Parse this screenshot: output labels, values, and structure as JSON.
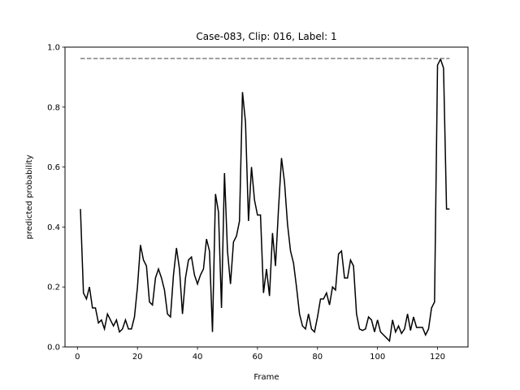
{
  "chart_data": {
    "type": "line",
    "title": "Case-083, Clip: 016, Label: 1",
    "xlabel": "Frame",
    "ylabel": "predicted probability",
    "xlim": [
      -4.15,
      130.15
    ],
    "ylim": [
      0,
      1.0
    ],
    "xticks": [
      0,
      20,
      40,
      60,
      80,
      100,
      120
    ],
    "yticks": [
      0.0,
      0.2,
      0.4,
      0.6,
      0.8,
      1.0
    ],
    "ytick_labels": [
      "0.0",
      "0.2",
      "0.4",
      "0.6",
      "0.8",
      "1.0"
    ],
    "grid": false,
    "colors": {
      "series": "#000000",
      "reference": "#808080"
    },
    "series": [
      {
        "style": "solid",
        "x": [
          1,
          2,
          3,
          4,
          5,
          6,
          7,
          8,
          9,
          10,
          11,
          12,
          13,
          14,
          15,
          16,
          17,
          18,
          19,
          20,
          21,
          22,
          23,
          24,
          25,
          26,
          27,
          28,
          29,
          30,
          31,
          32,
          33,
          34,
          35,
          36,
          37,
          38,
          39,
          40,
          41,
          42,
          43,
          44,
          45,
          46,
          47,
          48,
          49,
          50,
          51,
          52,
          53,
          54,
          55,
          56,
          57,
          58,
          59,
          60,
          61,
          62,
          63,
          64,
          65,
          66,
          67,
          68,
          69,
          70,
          71,
          72,
          73,
          74,
          75,
          76,
          77,
          78,
          79,
          80,
          81,
          82,
          83,
          84,
          85,
          86,
          87,
          88,
          89,
          90,
          91,
          92,
          93,
          94,
          95,
          96,
          97,
          98,
          99,
          100,
          101,
          102,
          103,
          104,
          105,
          106,
          107,
          108,
          109,
          110,
          111,
          112,
          113,
          114,
          115,
          116,
          117,
          118,
          119,
          120,
          121,
          122,
          123,
          124
        ],
        "y": [
          0.46,
          0.18,
          0.16,
          0.2,
          0.13,
          0.13,
          0.08,
          0.09,
          0.06,
          0.11,
          0.09,
          0.07,
          0.09,
          0.05,
          0.06,
          0.09,
          0.06,
          0.06,
          0.1,
          0.2,
          0.34,
          0.29,
          0.27,
          0.15,
          0.14,
          0.23,
          0.26,
          0.23,
          0.19,
          0.11,
          0.1,
          0.24,
          0.33,
          0.26,
          0.11,
          0.23,
          0.29,
          0.3,
          0.24,
          0.21,
          0.24,
          0.26,
          0.36,
          0.32,
          0.05,
          0.51,
          0.45,
          0.13,
          0.58,
          0.32,
          0.21,
          0.35,
          0.37,
          0.42,
          0.85,
          0.75,
          0.42,
          0.6,
          0.49,
          0.44,
          0.44,
          0.18,
          0.26,
          0.17,
          0.38,
          0.27,
          0.46,
          0.63,
          0.55,
          0.41,
          0.32,
          0.28,
          0.2,
          0.11,
          0.07,
          0.06,
          0.11,
          0.06,
          0.05,
          0.1,
          0.16,
          0.16,
          0.18,
          0.14,
          0.2,
          0.19,
          0.31,
          0.32,
          0.23,
          0.23,
          0.29,
          0.27,
          0.11,
          0.06,
          0.055,
          0.06,
          0.1,
          0.09,
          0.05,
          0.09,
          0.05,
          0.04,
          0.03,
          0.02,
          0.09,
          0.05,
          0.07,
          0.045,
          0.06,
          0.11,
          0.055,
          0.1,
          0.065,
          0.065,
          0.065,
          0.04,
          0.06,
          0.13,
          0.15,
          0.94,
          0.96,
          0.93,
          0.46,
          0.46
        ]
      },
      {
        "style": "dashed",
        "x": [
          1,
          124
        ],
        "y": [
          0.962,
          0.962
        ]
      }
    ]
  }
}
